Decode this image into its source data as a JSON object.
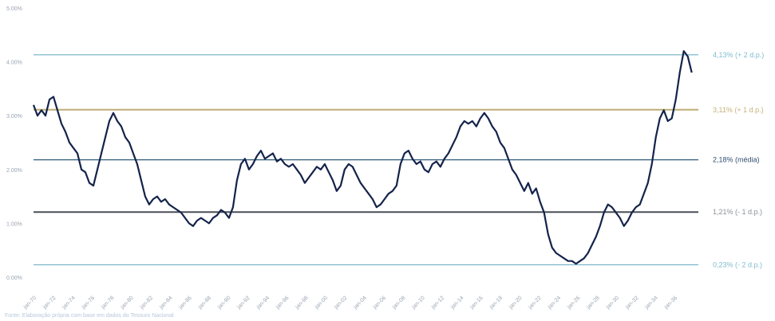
{
  "chart_data": {
    "type": "line",
    "title": "",
    "xlabel": "",
    "ylabel": "",
    "ylim": [
      0.0,
      5.0
    ],
    "yticks": [
      "0.00%",
      "1.00%",
      "2.00%",
      "3.00%",
      "4.00%",
      "5.00%"
    ],
    "yticks_values": [
      0,
      1,
      2,
      3,
      4,
      5
    ],
    "x_ticks": [
      "jan-70",
      "jan-72",
      "jan-74",
      "jan-76",
      "jan-78",
      "jan-80",
      "jan-82",
      "jan-84",
      "jan-86",
      "jan-88",
      "jan-90",
      "jan-92",
      "jan-94",
      "jan-96",
      "jan-98",
      "jan-00",
      "jan-02",
      "jan-04",
      "jan-06",
      "jan-08",
      "jan-10",
      "jan-12",
      "jan-14",
      "jan-16",
      "jan-18",
      "jan-20",
      "jan-22",
      "jan-24",
      "jan-26",
      "jan-28",
      "jan-30",
      "jan-32",
      "jan-34",
      "jan-36"
    ],
    "x_range": [
      0,
      100
    ],
    "series": [
      {
        "values": [
          [
            0,
            3.2
          ],
          [
            0.6,
            3.0
          ],
          [
            1.2,
            3.1
          ],
          [
            1.8,
            3.0
          ],
          [
            2.4,
            3.3
          ],
          [
            3.0,
            3.35
          ],
          [
            3.6,
            3.1
          ],
          [
            4.2,
            2.85
          ],
          [
            4.8,
            2.7
          ],
          [
            5.4,
            2.5
          ],
          [
            6.0,
            2.4
          ],
          [
            6.6,
            2.3
          ],
          [
            7.2,
            2.0
          ],
          [
            7.8,
            1.95
          ],
          [
            8.4,
            1.75
          ],
          [
            9.0,
            1.7
          ],
          [
            9.6,
            2.0
          ],
          [
            10.2,
            2.3
          ],
          [
            10.8,
            2.6
          ],
          [
            11.4,
            2.9
          ],
          [
            12.0,
            3.05
          ],
          [
            12.6,
            2.9
          ],
          [
            13.2,
            2.8
          ],
          [
            13.8,
            2.6
          ],
          [
            14.4,
            2.5
          ],
          [
            15.0,
            2.3
          ],
          [
            15.6,
            2.1
          ],
          [
            16.2,
            1.8
          ],
          [
            16.8,
            1.5
          ],
          [
            17.4,
            1.35
          ],
          [
            18.0,
            1.45
          ],
          [
            18.6,
            1.5
          ],
          [
            19.2,
            1.4
          ],
          [
            19.8,
            1.45
          ],
          [
            20.4,
            1.35
          ],
          [
            21.0,
            1.3
          ],
          [
            21.6,
            1.25
          ],
          [
            22.2,
            1.2
          ],
          [
            22.8,
            1.1
          ],
          [
            23.4,
            1.0
          ],
          [
            24.0,
            0.95
          ],
          [
            24.6,
            1.05
          ],
          [
            25.2,
            1.1
          ],
          [
            25.8,
            1.05
          ],
          [
            26.4,
            1.0
          ],
          [
            27.0,
            1.1
          ],
          [
            27.6,
            1.15
          ],
          [
            28.2,
            1.25
          ],
          [
            28.8,
            1.2
          ],
          [
            29.4,
            1.1
          ],
          [
            30.0,
            1.3
          ],
          [
            30.6,
            1.8
          ],
          [
            31.2,
            2.1
          ],
          [
            31.8,
            2.2
          ],
          [
            32.4,
            2.0
          ],
          [
            33.0,
            2.1
          ],
          [
            33.6,
            2.25
          ],
          [
            34.2,
            2.35
          ],
          [
            34.8,
            2.2
          ],
          [
            35.4,
            2.25
          ],
          [
            36.0,
            2.3
          ],
          [
            36.6,
            2.15
          ],
          [
            37.2,
            2.2
          ],
          [
            37.8,
            2.1
          ],
          [
            38.4,
            2.05
          ],
          [
            39.0,
            2.1
          ],
          [
            39.6,
            2.0
          ],
          [
            40.2,
            1.9
          ],
          [
            40.8,
            1.75
          ],
          [
            41.4,
            1.85
          ],
          [
            42.0,
            1.95
          ],
          [
            42.6,
            2.05
          ],
          [
            43.2,
            2.0
          ],
          [
            43.8,
            2.1
          ],
          [
            44.4,
            1.95
          ],
          [
            45.0,
            1.8
          ],
          [
            45.6,
            1.6
          ],
          [
            46.2,
            1.7
          ],
          [
            46.8,
            2.0
          ],
          [
            47.4,
            2.1
          ],
          [
            48.0,
            2.05
          ],
          [
            48.6,
            1.9
          ],
          [
            49.2,
            1.75
          ],
          [
            49.8,
            1.65
          ],
          [
            50.4,
            1.55
          ],
          [
            51.0,
            1.45
          ],
          [
            51.6,
            1.3
          ],
          [
            52.2,
            1.35
          ],
          [
            52.8,
            1.45
          ],
          [
            53.4,
            1.55
          ],
          [
            54.0,
            1.6
          ],
          [
            54.6,
            1.7
          ],
          [
            55.2,
            2.1
          ],
          [
            55.8,
            2.3
          ],
          [
            56.4,
            2.35
          ],
          [
            57.0,
            2.2
          ],
          [
            57.6,
            2.1
          ],
          [
            58.2,
            2.15
          ],
          [
            58.8,
            2.0
          ],
          [
            59.4,
            1.95
          ],
          [
            60.0,
            2.1
          ],
          [
            60.6,
            2.15
          ],
          [
            61.2,
            2.05
          ],
          [
            61.8,
            2.2
          ],
          [
            62.4,
            2.3
          ],
          [
            63.0,
            2.45
          ],
          [
            63.6,
            2.6
          ],
          [
            64.2,
            2.8
          ],
          [
            64.8,
            2.9
          ],
          [
            65.4,
            2.85
          ],
          [
            66.0,
            2.9
          ],
          [
            66.6,
            2.8
          ],
          [
            67.2,
            2.95
          ],
          [
            67.8,
            3.05
          ],
          [
            68.4,
            2.95
          ],
          [
            69.0,
            2.8
          ],
          [
            69.6,
            2.7
          ],
          [
            70.2,
            2.5
          ],
          [
            70.8,
            2.4
          ],
          [
            71.4,
            2.2
          ],
          [
            72.0,
            2.0
          ],
          [
            72.6,
            1.9
          ],
          [
            73.2,
            1.75
          ],
          [
            73.8,
            1.6
          ],
          [
            74.4,
            1.75
          ],
          [
            75.0,
            1.55
          ],
          [
            75.6,
            1.65
          ],
          [
            76.2,
            1.4
          ],
          [
            76.8,
            1.2
          ],
          [
            77.4,
            0.8
          ],
          [
            78.0,
            0.55
          ],
          [
            78.6,
            0.45
          ],
          [
            79.2,
            0.4
          ],
          [
            79.8,
            0.35
          ],
          [
            80.4,
            0.3
          ],
          [
            81.0,
            0.3
          ],
          [
            81.6,
            0.25
          ],
          [
            82.2,
            0.3
          ],
          [
            82.8,
            0.35
          ],
          [
            83.4,
            0.45
          ],
          [
            84.0,
            0.6
          ],
          [
            84.6,
            0.75
          ],
          [
            85.2,
            0.95
          ],
          [
            85.8,
            1.2
          ],
          [
            86.4,
            1.35
          ],
          [
            87.0,
            1.3
          ],
          [
            87.6,
            1.2
          ],
          [
            88.2,
            1.1
          ],
          [
            88.8,
            0.95
          ],
          [
            89.4,
            1.05
          ],
          [
            90.0,
            1.2
          ],
          [
            90.6,
            1.3
          ],
          [
            91.2,
            1.35
          ],
          [
            91.8,
            1.55
          ],
          [
            92.4,
            1.75
          ],
          [
            93.0,
            2.1
          ],
          [
            93.6,
            2.6
          ],
          [
            94.2,
            2.95
          ],
          [
            94.8,
            3.1
          ],
          [
            95.4,
            2.9
          ],
          [
            96.0,
            2.95
          ],
          [
            96.6,
            3.3
          ],
          [
            97.2,
            3.8
          ],
          [
            97.8,
            4.2
          ],
          [
            98.4,
            4.1
          ],
          [
            99.0,
            3.8
          ]
        ]
      }
    ],
    "bands": [
      {
        "label": "4,13% (+ 2 d.p.)",
        "value": 4.13,
        "color": "#6fb1c6",
        "label_color": "#7ebccf"
      },
      {
        "label": "3,11% (+ 1 d.p.)",
        "value": 3.11,
        "color": "#bfae76",
        "label_color": "#c6b27a"
      },
      {
        "label": "2,18% (média)",
        "value": 2.18,
        "color": "#2f5b7c",
        "label_color": "#2f4f6e"
      },
      {
        "label": "1,21% (- 1 d.p.)",
        "value": 1.21,
        "color": "#4a4f57",
        "label_color": "#8c9096"
      },
      {
        "label": "0,23% (- 2 d.p.)",
        "value": 0.23,
        "color": "#6fb1c6",
        "label_color": "#7ebccf"
      }
    ],
    "grid": false,
    "legend": "none",
    "line_color": "#14234b"
  },
  "source": "Fonte: Elaboração própria com base em dados do Tesouro Nacional",
  "colors": {
    "background": "#ffffff",
    "line": "#14234b"
  }
}
